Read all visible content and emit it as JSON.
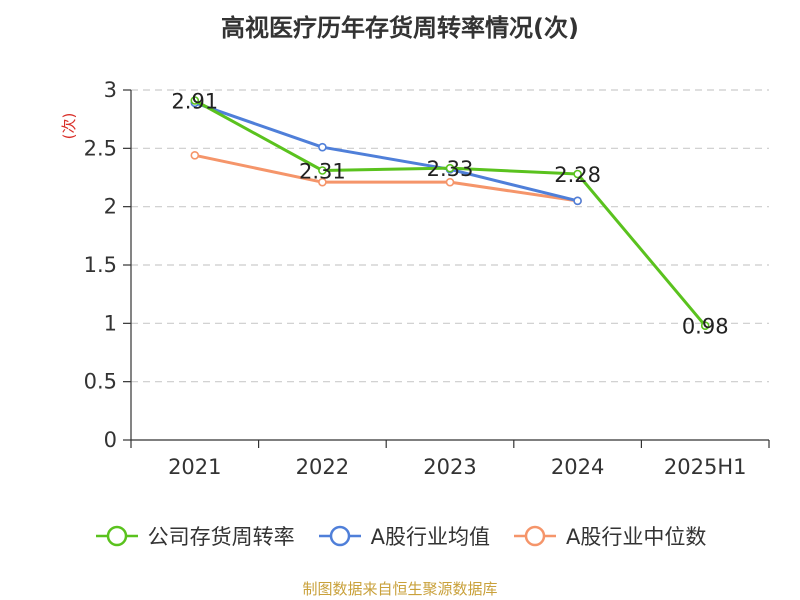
{
  "chart_data": {
    "type": "line",
    "title": "高视医疗历年存货周转率情况(次)",
    "ylabel": "(次)",
    "xlabel": "",
    "categories": [
      "2021",
      "2022",
      "2023",
      "2024",
      "2025H1"
    ],
    "ylim": [
      0,
      3
    ],
    "yticks": [
      0,
      0.5,
      1,
      1.5,
      2,
      2.5,
      3
    ],
    "ytick_labels": [
      "0",
      "0.5",
      "1",
      "1.5",
      "2",
      "2.5",
      "3"
    ],
    "grid": true,
    "legend_position": "bottom",
    "series": [
      {
        "name": "公司存货周转率",
        "color": "#5ac21e",
        "values": [
          2.91,
          2.31,
          2.33,
          2.28,
          0.98
        ],
        "labels": [
          "2.91",
          "2.31",
          "2.33",
          "2.28",
          "0.98"
        ]
      },
      {
        "name": "A股行业均值",
        "color": "#4f7fd9",
        "values": [
          2.89,
          2.51,
          2.32,
          2.05,
          null
        ]
      },
      {
        "name": "A股行业中位数",
        "color": "#f5956a",
        "values": [
          2.44,
          2.21,
          2.21,
          2.05,
          null
        ]
      }
    ]
  },
  "source": "制图数据来自恒生聚源数据库"
}
